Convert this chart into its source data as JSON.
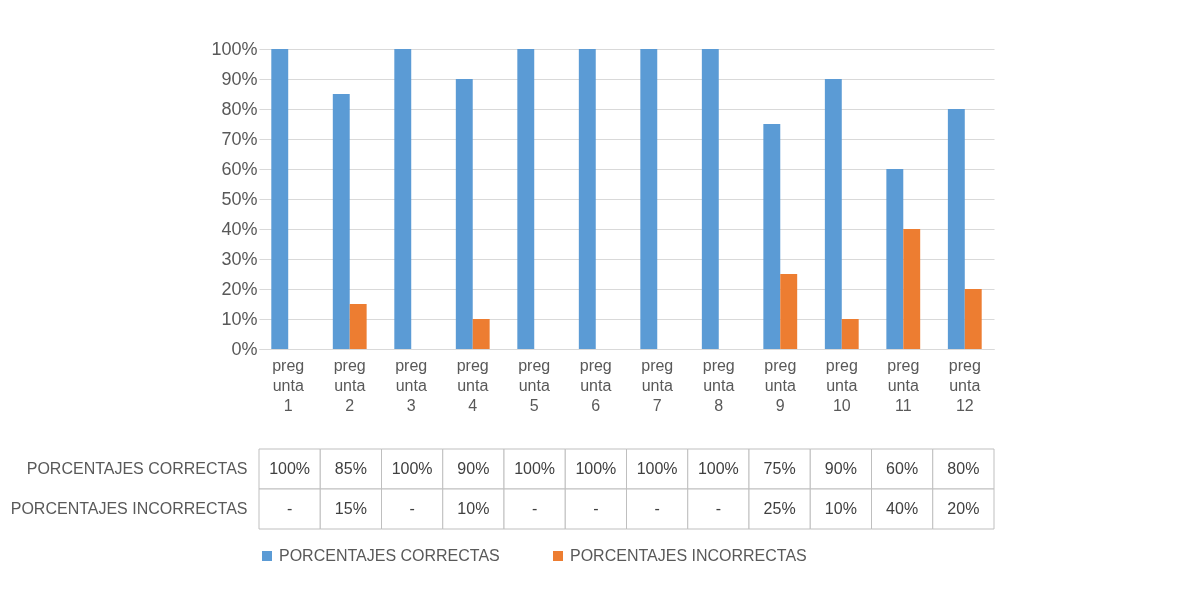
{
  "chart_data": {
    "type": "bar",
    "categories": [
      "pregunta 1",
      "pregunta 2",
      "pregunta 3",
      "pregunta 4",
      "pregunta 5",
      "pregunta 6",
      "pregunta 7",
      "pregunta 8",
      "pregunta 9",
      "pregunta 10",
      "pregunta 11",
      "pregunta 12"
    ],
    "series": [
      {
        "name": "PORCENTAJES CORRECTAS",
        "color": "#5b9bd5",
        "values": [
          100,
          85,
          100,
          90,
          100,
          100,
          100,
          100,
          75,
          90,
          60,
          80
        ],
        "value_labels": [
          "100%",
          "85%",
          "100%",
          "90%",
          "100%",
          "100%",
          "100%",
          "100%",
          "75%",
          "90%",
          "60%",
          "80%"
        ]
      },
      {
        "name": "PORCENTAJES INCORRECTAS",
        "color": "#ed7d31",
        "values": [
          0,
          15,
          0,
          10,
          0,
          0,
          0,
          0,
          25,
          10,
          40,
          20
        ],
        "value_labels": [
          "-",
          "15%",
          "-",
          "10%",
          "-",
          "-",
          "-",
          "-",
          "25%",
          "10%",
          "40%",
          "20%"
        ]
      }
    ],
    "ylim": [
      0,
      100
    ],
    "yticks": [
      {
        "value": 0,
        "label": "0%"
      },
      {
        "value": 10,
        "label": "10%"
      },
      {
        "value": 20,
        "label": "20%"
      },
      {
        "value": 30,
        "label": "30%"
      },
      {
        "value": 40,
        "label": "40%"
      },
      {
        "value": 50,
        "label": "50%"
      },
      {
        "value": 60,
        "label": "60%"
      },
      {
        "value": 70,
        "label": "70%"
      },
      {
        "value": 80,
        "label": "80%"
      },
      {
        "value": 90,
        "label": "90%"
      },
      {
        "value": 100,
        "label": "100%"
      }
    ],
    "grid": "y",
    "legend": "bottom"
  }
}
